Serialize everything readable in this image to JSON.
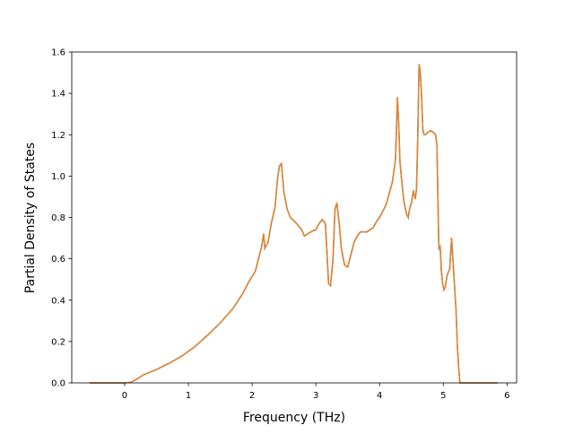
{
  "chart_data": {
    "type": "line",
    "title": "",
    "xlabel": "Frequency (THz)",
    "ylabel": "Partial Density of States",
    "xlim": [
      -0.83,
      6.15
    ],
    "ylim": [
      0.0,
      1.6
    ],
    "xticks": [
      0,
      1,
      2,
      3,
      4,
      5,
      6
    ],
    "yticks": [
      0.0,
      0.2,
      0.4,
      0.6,
      0.8,
      1.0,
      1.2,
      1.4,
      1.6
    ],
    "xtick_labels": [
      "0",
      "1",
      "2",
      "3",
      "4",
      "5",
      "6"
    ],
    "ytick_labels": [
      "0.0",
      "0.2",
      "0.4",
      "0.6",
      "0.8",
      "1.0",
      "1.2",
      "1.4",
      "1.6"
    ],
    "grid": false,
    "legend": false,
    "colors": {
      "series_line": "#e8832a",
      "underlay_line": "#1f77b4"
    },
    "series": [
      {
        "x": [
          -0.55,
          -0.3,
          0.0,
          0.1,
          0.2,
          0.3,
          0.5,
          0.7,
          0.9,
          1.1,
          1.3,
          1.5,
          1.7,
          1.85,
          1.95,
          2.05,
          2.1,
          2.15,
          2.18,
          2.2,
          2.25,
          2.3,
          2.36,
          2.4,
          2.43,
          2.46,
          2.5,
          2.55,
          2.6,
          2.7,
          2.78,
          2.82,
          2.87,
          2.95,
          3.0,
          3.05,
          3.1,
          3.15,
          3.2,
          3.23,
          3.27,
          3.3,
          3.33,
          3.37,
          3.4,
          3.45,
          3.5,
          3.55,
          3.6,
          3.65,
          3.7,
          3.8,
          3.85,
          3.9,
          3.95,
          4.0,
          4.1,
          4.2,
          4.25,
          4.28,
          4.3,
          4.32,
          4.34,
          4.36,
          4.38,
          4.42,
          4.45,
          4.47,
          4.5,
          4.53,
          4.56,
          4.58,
          4.6,
          4.62,
          4.64,
          4.66,
          4.68,
          4.7,
          4.72,
          4.75,
          4.8,
          4.85,
          4.88,
          4.9,
          4.93,
          4.95,
          4.97,
          4.99,
          5.01,
          5.03,
          5.06,
          5.1,
          5.13,
          5.16,
          5.2,
          5.22,
          5.24,
          5.26,
          5.28,
          5.3,
          5.32,
          5.34,
          5.4,
          5.6,
          5.85
        ],
        "y": [
          0.0,
          0.0,
          0.0,
          0.003,
          0.02,
          0.04,
          0.065,
          0.095,
          0.13,
          0.175,
          0.23,
          0.29,
          0.36,
          0.43,
          0.49,
          0.54,
          0.6,
          0.66,
          0.72,
          0.65,
          0.68,
          0.77,
          0.85,
          0.99,
          1.05,
          1.06,
          0.92,
          0.84,
          0.8,
          0.77,
          0.74,
          0.71,
          0.72,
          0.735,
          0.74,
          0.77,
          0.79,
          0.77,
          0.48,
          0.47,
          0.6,
          0.84,
          0.87,
          0.76,
          0.65,
          0.57,
          0.56,
          0.62,
          0.68,
          0.71,
          0.73,
          0.73,
          0.74,
          0.75,
          0.78,
          0.8,
          0.86,
          0.97,
          1.08,
          1.38,
          1.25,
          1.07,
          1.0,
          0.94,
          0.88,
          0.82,
          0.8,
          0.84,
          0.87,
          0.93,
          0.89,
          0.94,
          1.2,
          1.54,
          1.5,
          1.38,
          1.22,
          1.2,
          1.2,
          1.21,
          1.22,
          1.21,
          1.2,
          1.15,
          0.65,
          0.66,
          0.54,
          0.48,
          0.45,
          0.46,
          0.52,
          0.55,
          0.7,
          0.55,
          0.35,
          0.18,
          0.08,
          0.0,
          0.0,
          0.0,
          0.0,
          0.0,
          0.0,
          0.0,
          0.0
        ]
      }
    ]
  }
}
